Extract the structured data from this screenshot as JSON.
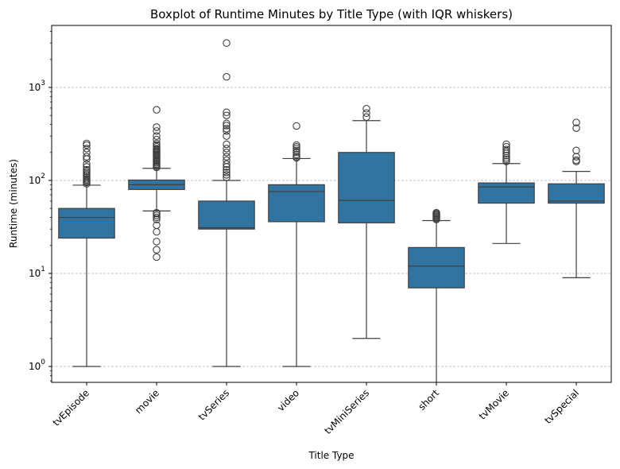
{
  "chart_data": {
    "type": "boxplot",
    "title": "Boxplot of Runtime Minutes by Title Type (with IQR whiskers)",
    "xlabel": "Title Type",
    "ylabel": "Runtime (minutes)",
    "yscale": "log",
    "ylim": [
      0.68,
      4500
    ],
    "y_ticks": [
      {
        "value": 1,
        "base": "10",
        "exp": "0"
      },
      {
        "value": 10,
        "base": "10",
        "exp": "1"
      },
      {
        "value": 100,
        "base": "10",
        "exp": "2"
      },
      {
        "value": 1000,
        "base": "10",
        "exp": "3"
      }
    ],
    "grid": "y-dashed",
    "box_color": "#3274a1",
    "categories": [
      "tvEpisode",
      "movie",
      "tvSeries",
      "video",
      "tvMiniSeries",
      "short",
      "tvMovie",
      "tvSpecial"
    ],
    "boxes": [
      {
        "whislo": 1,
        "q1": 24,
        "med": 40,
        "q3": 50,
        "whishi": 89,
        "fliers": [
          92,
          95,
          98,
          101,
          104,
          108,
          112,
          116,
          120,
          125,
          130,
          140,
          150,
          170,
          180,
          200,
          220,
          240,
          250
        ]
      },
      {
        "whislo": 47,
        "q1": 80,
        "med": 90,
        "q3": 101,
        "whishi": 135,
        "fliers": [
          15,
          18,
          22,
          28,
          33,
          38,
          40,
          42,
          44,
          45,
          138,
          142,
          146,
          150,
          155,
          160,
          165,
          170,
          175,
          180,
          185,
          190,
          195,
          200,
          205,
          210,
          215,
          220,
          230,
          240,
          250,
          275,
          300,
          340,
          375,
          575
        ]
      },
      {
        "whislo": 1,
        "q1": 30,
        "med": 31,
        "q3": 60,
        "whishi": 100,
        "fliers": [
          108,
          115,
          122,
          130,
          140,
          150,
          165,
          180,
          200,
          220,
          245,
          300,
          340,
          360,
          390,
          410,
          500,
          540,
          1300,
          3000
        ]
      },
      {
        "whislo": 1,
        "q1": 36,
        "med": 76,
        "q3": 90,
        "whishi": 172,
        "fliers": [
          175,
          180,
          190,
          200,
          210,
          220,
          230,
          240,
          385
        ]
      },
      {
        "whislo": 2,
        "q1": 35,
        "med": 61,
        "q3": 200,
        "whishi": 440,
        "fliers": [
          480,
          530,
          590
        ]
      },
      {
        "whislo": 0.62,
        "q1": 7,
        "med": 12,
        "q3": 19,
        "whishi": 37,
        "fliers": [
          38,
          39,
          40,
          41,
          42,
          43,
          44,
          45
        ]
      },
      {
        "whislo": 21,
        "q1": 57,
        "med": 85,
        "q3": 94,
        "whishi": 152,
        "fliers": [
          160,
          168,
          175,
          185,
          195,
          205,
          215,
          230,
          245
        ]
      },
      {
        "whislo": 9,
        "q1": 57,
        "med": 60,
        "q3": 92,
        "whishi": 125,
        "fliers": [
          160,
          165,
          180,
          210,
          365,
          420
        ]
      }
    ]
  }
}
